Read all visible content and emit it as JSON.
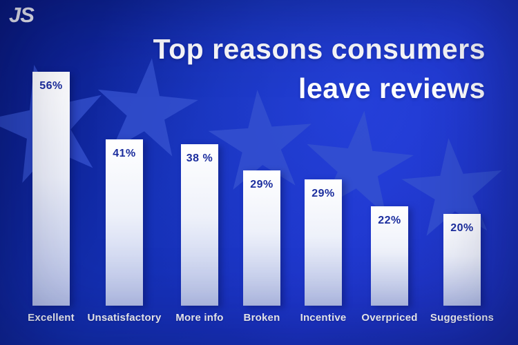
{
  "logo": {
    "text": "JS"
  },
  "title": {
    "line1": "Top reasons consumers",
    "line2": "leave reviews"
  },
  "chart_data": {
    "type": "bar",
    "title": "Top reasons consumers leave reviews",
    "categories": [
      "Excellent",
      "Unsatisfactory",
      "More info",
      "Broken",
      "Incentive",
      "Overpriced",
      "Suggestions"
    ],
    "values": [
      56,
      41,
      38,
      29,
      29,
      22,
      20
    ],
    "value_labels": [
      "56%",
      "41%",
      "38 %",
      "29%",
      "29%",
      "22%",
      "20%"
    ],
    "value_label_position": "inside-top",
    "orientation": "vertical",
    "xlabel": "",
    "ylabel": "",
    "ylim": [
      0,
      60
    ],
    "grid": false,
    "legend": "none"
  },
  "colors": {
    "background_dark": "#0a1a80",
    "background_bright": "#1c33c8",
    "bar_gradient_top": "#ffffff",
    "bar_gradient_bottom": "#b7c2e9",
    "value_text": "#1c2e9e",
    "category_text": "#ffffff",
    "title_text": "#ffffff",
    "star_fill": "#3652cf",
    "logo_text": "#ffffff"
  },
  "decor": {
    "star_count": 5,
    "star_shape": "five-point-star"
  }
}
